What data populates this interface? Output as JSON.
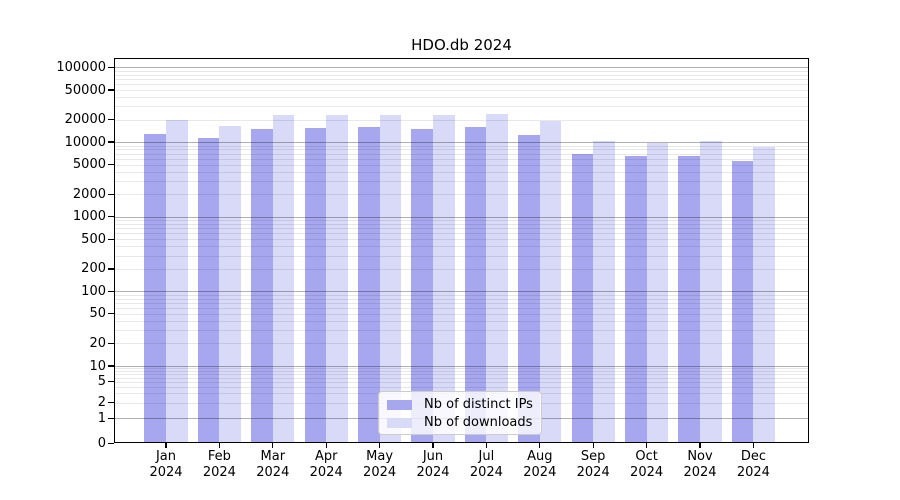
{
  "figure": {
    "background": "#ffffff"
  },
  "chart_data": {
    "type": "bar",
    "title": "HDO.db 2024",
    "categories": [
      "Jan",
      "Feb",
      "Mar",
      "Apr",
      "May",
      "Jun",
      "Jul",
      "Aug",
      "Sep",
      "Oct",
      "Nov",
      "Dec"
    ],
    "category_year_line": "2024",
    "series": [
      {
        "name": "Nb of distinct IPs",
        "color": "#a7a7f0",
        "values": [
          13000,
          11300,
          15100,
          15400,
          15900,
          15100,
          16000,
          12600,
          7000,
          6500,
          6500,
          5500
        ]
      },
      {
        "name": "Nb of downloads",
        "color": "#d9d9f8",
        "values": [
          19800,
          16600,
          23200,
          22900,
          23400,
          22800,
          23500,
          19300,
          10200,
          9600,
          10400,
          8700
        ]
      }
    ],
    "yscale": "symlog",
    "ylim": [
      0,
      135000
    ],
    "y_tick_labels": [
      "0",
      "1",
      "2",
      "5",
      "10",
      "20",
      "50",
      "100",
      "200",
      "500",
      "1000",
      "2000",
      "5000",
      "10000",
      "20000",
      "50000",
      "100000"
    ],
    "y_tick_values": [
      0,
      1,
      2,
      5,
      10,
      20,
      50,
      100,
      200,
      500,
      1000,
      2000,
      5000,
      10000,
      20000,
      50000,
      100000
    ],
    "grid": "both",
    "legend_position": "lower center"
  }
}
